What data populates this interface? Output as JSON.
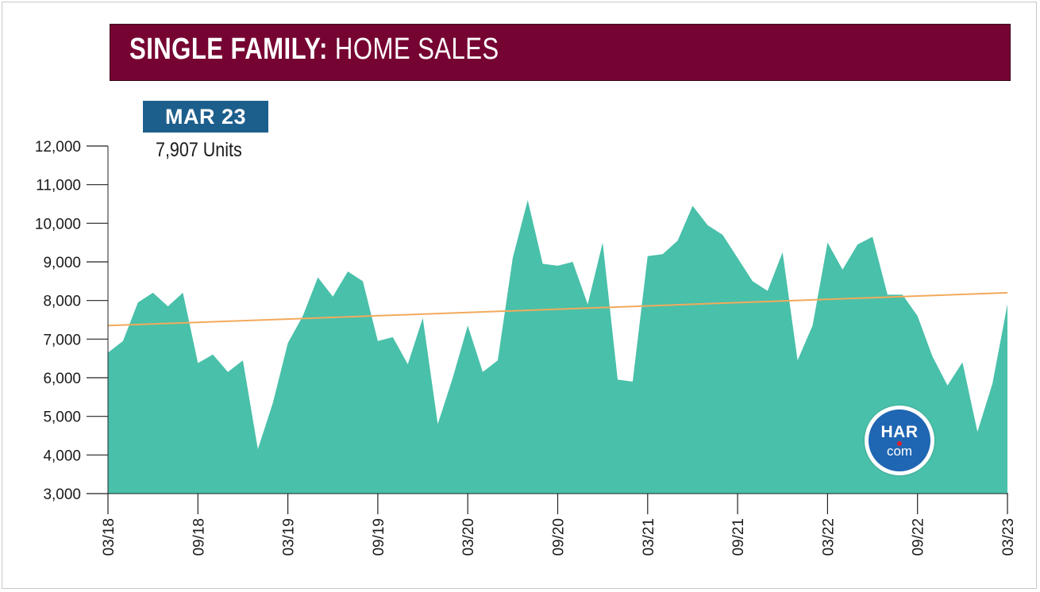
{
  "title": {
    "bold": "SINGLE FAMILY:",
    "light": "HOME SALES"
  },
  "callout": {
    "badge": "MAR 23",
    "value": "7,907 Units"
  },
  "logo": {
    "top": "HAR",
    "bottom": "com",
    "colors": {
      "fill": "#1f66b3",
      "dot": "#e0222b"
    }
  },
  "colors": {
    "title_bar": "#760432",
    "area": "#49c0aa",
    "trend": "#f2aa5c",
    "badge": "#1d5f8c"
  },
  "chart_data": {
    "type": "area",
    "title": "SINGLE FAMILY: HOME SALES",
    "xlabel": "",
    "ylabel": "",
    "ylim": [
      3000,
      12000
    ],
    "yticks": [
      3000,
      4000,
      5000,
      6000,
      7000,
      8000,
      9000,
      10000,
      11000,
      12000
    ],
    "ytick_labels": [
      "3,000",
      "4,000",
      "5,000",
      "6,000",
      "7,000",
      "8,000",
      "9,000",
      "10,000",
      "11,000",
      "12,000"
    ],
    "xtick_labels": [
      "03/18",
      "09/18",
      "03/19",
      "09/19",
      "03/20",
      "09/20",
      "03/21",
      "09/21",
      "03/22",
      "09/22",
      "03/23"
    ],
    "xtick_positions": [
      0,
      6,
      12,
      18,
      24,
      30,
      36,
      42,
      48,
      54,
      60
    ],
    "grid": false,
    "series": [
      {
        "values": [
          6650,
          6950,
          7950,
          8200,
          7850,
          8200,
          6380,
          6600,
          6150,
          6450,
          4150,
          5350,
          6900,
          7600,
          8600,
          8100,
          8750,
          8500,
          6950,
          7050,
          6350,
          7550,
          4800,
          6000,
          7350,
          6150,
          6450,
          9100,
          10600,
          8950,
          8900,
          9000,
          7900,
          9500,
          5950,
          5900,
          9150,
          9200,
          9550,
          10450,
          9950,
          9700,
          9100,
          8500,
          8250,
          9250,
          6450,
          7350,
          9500,
          8800,
          9450,
          9650,
          8150,
          8150,
          7600,
          6550,
          5800,
          6400,
          4600,
          5850,
          7907
        ]
      }
    ],
    "trend_line": {
      "start": 7350,
      "end": 8200
    },
    "annotation": {
      "label": "MAR 23",
      "value": 7907,
      "text": "7,907 Units"
    }
  }
}
